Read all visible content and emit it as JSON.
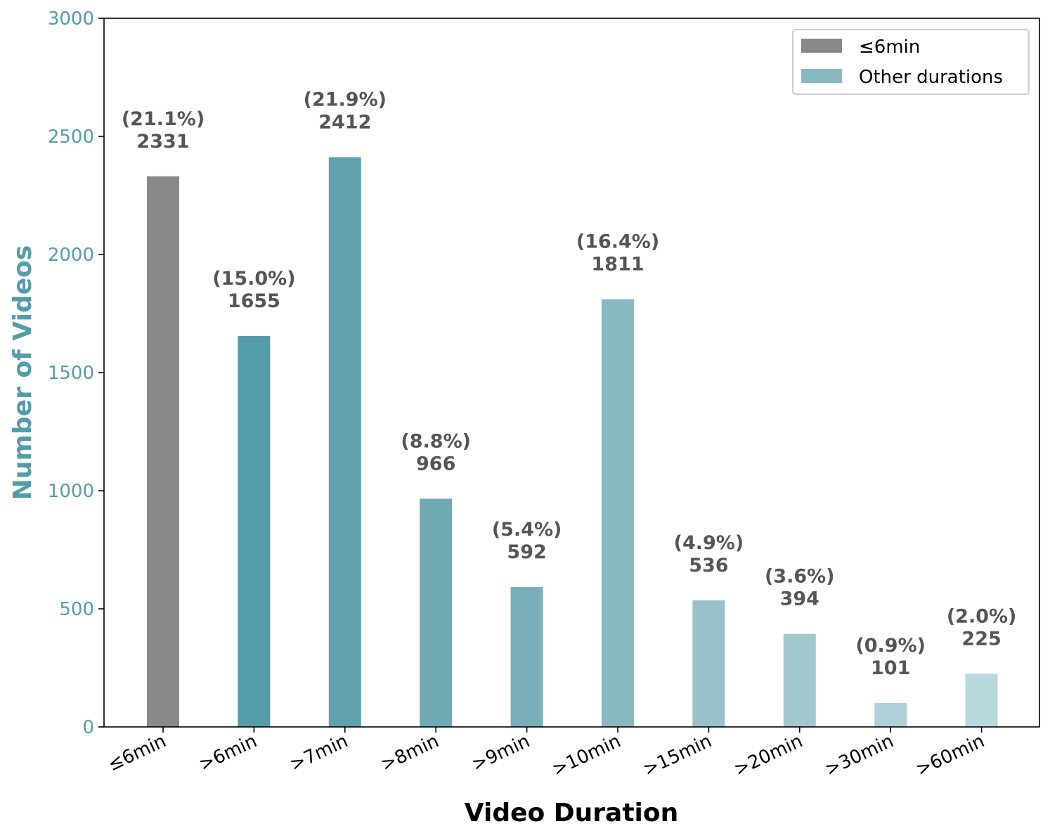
{
  "chart_data": {
    "type": "bar",
    "title": "",
    "xlabel": "Video Duration",
    "ylabel": "Number of Videos",
    "ylim": [
      0,
      3000
    ],
    "yticks": [
      0,
      500,
      1000,
      1500,
      2000,
      2500,
      3000
    ],
    "categories": [
      "≤6min",
      ">6min",
      ">7min",
      ">8min",
      ">9min",
      ">10min",
      ">15min",
      ">20min",
      ">30min",
      ">60min"
    ],
    "values": [
      2331,
      1655,
      2412,
      966,
      592,
      1811,
      536,
      394,
      101,
      225
    ],
    "percent_labels": [
      "(21.1%)",
      "(15.0%)",
      "(21.9%)",
      "(8.8%)",
      "(5.4%)",
      "(16.4%)",
      "(4.9%)",
      "(3.6%)",
      "(0.9%)",
      "(2.0%)"
    ],
    "bar_colors": [
      "#888888",
      "#559ca9",
      "#5fa2ae",
      "#6fa9b3",
      "#79afb8",
      "#88b9c3",
      "#98c1ca",
      "#a4c7cf",
      "#aed0d6",
      "#b9d8dd"
    ],
    "grid": false,
    "legend": {
      "placement": "top-right",
      "entries": [
        {
          "label": "≤6min",
          "color": "#888888"
        },
        {
          "label": "Other durations",
          "color": "#88b9c3"
        }
      ]
    },
    "colors": {
      "y_axis_accent": "#559ca9",
      "bar_label": "#555555"
    }
  }
}
